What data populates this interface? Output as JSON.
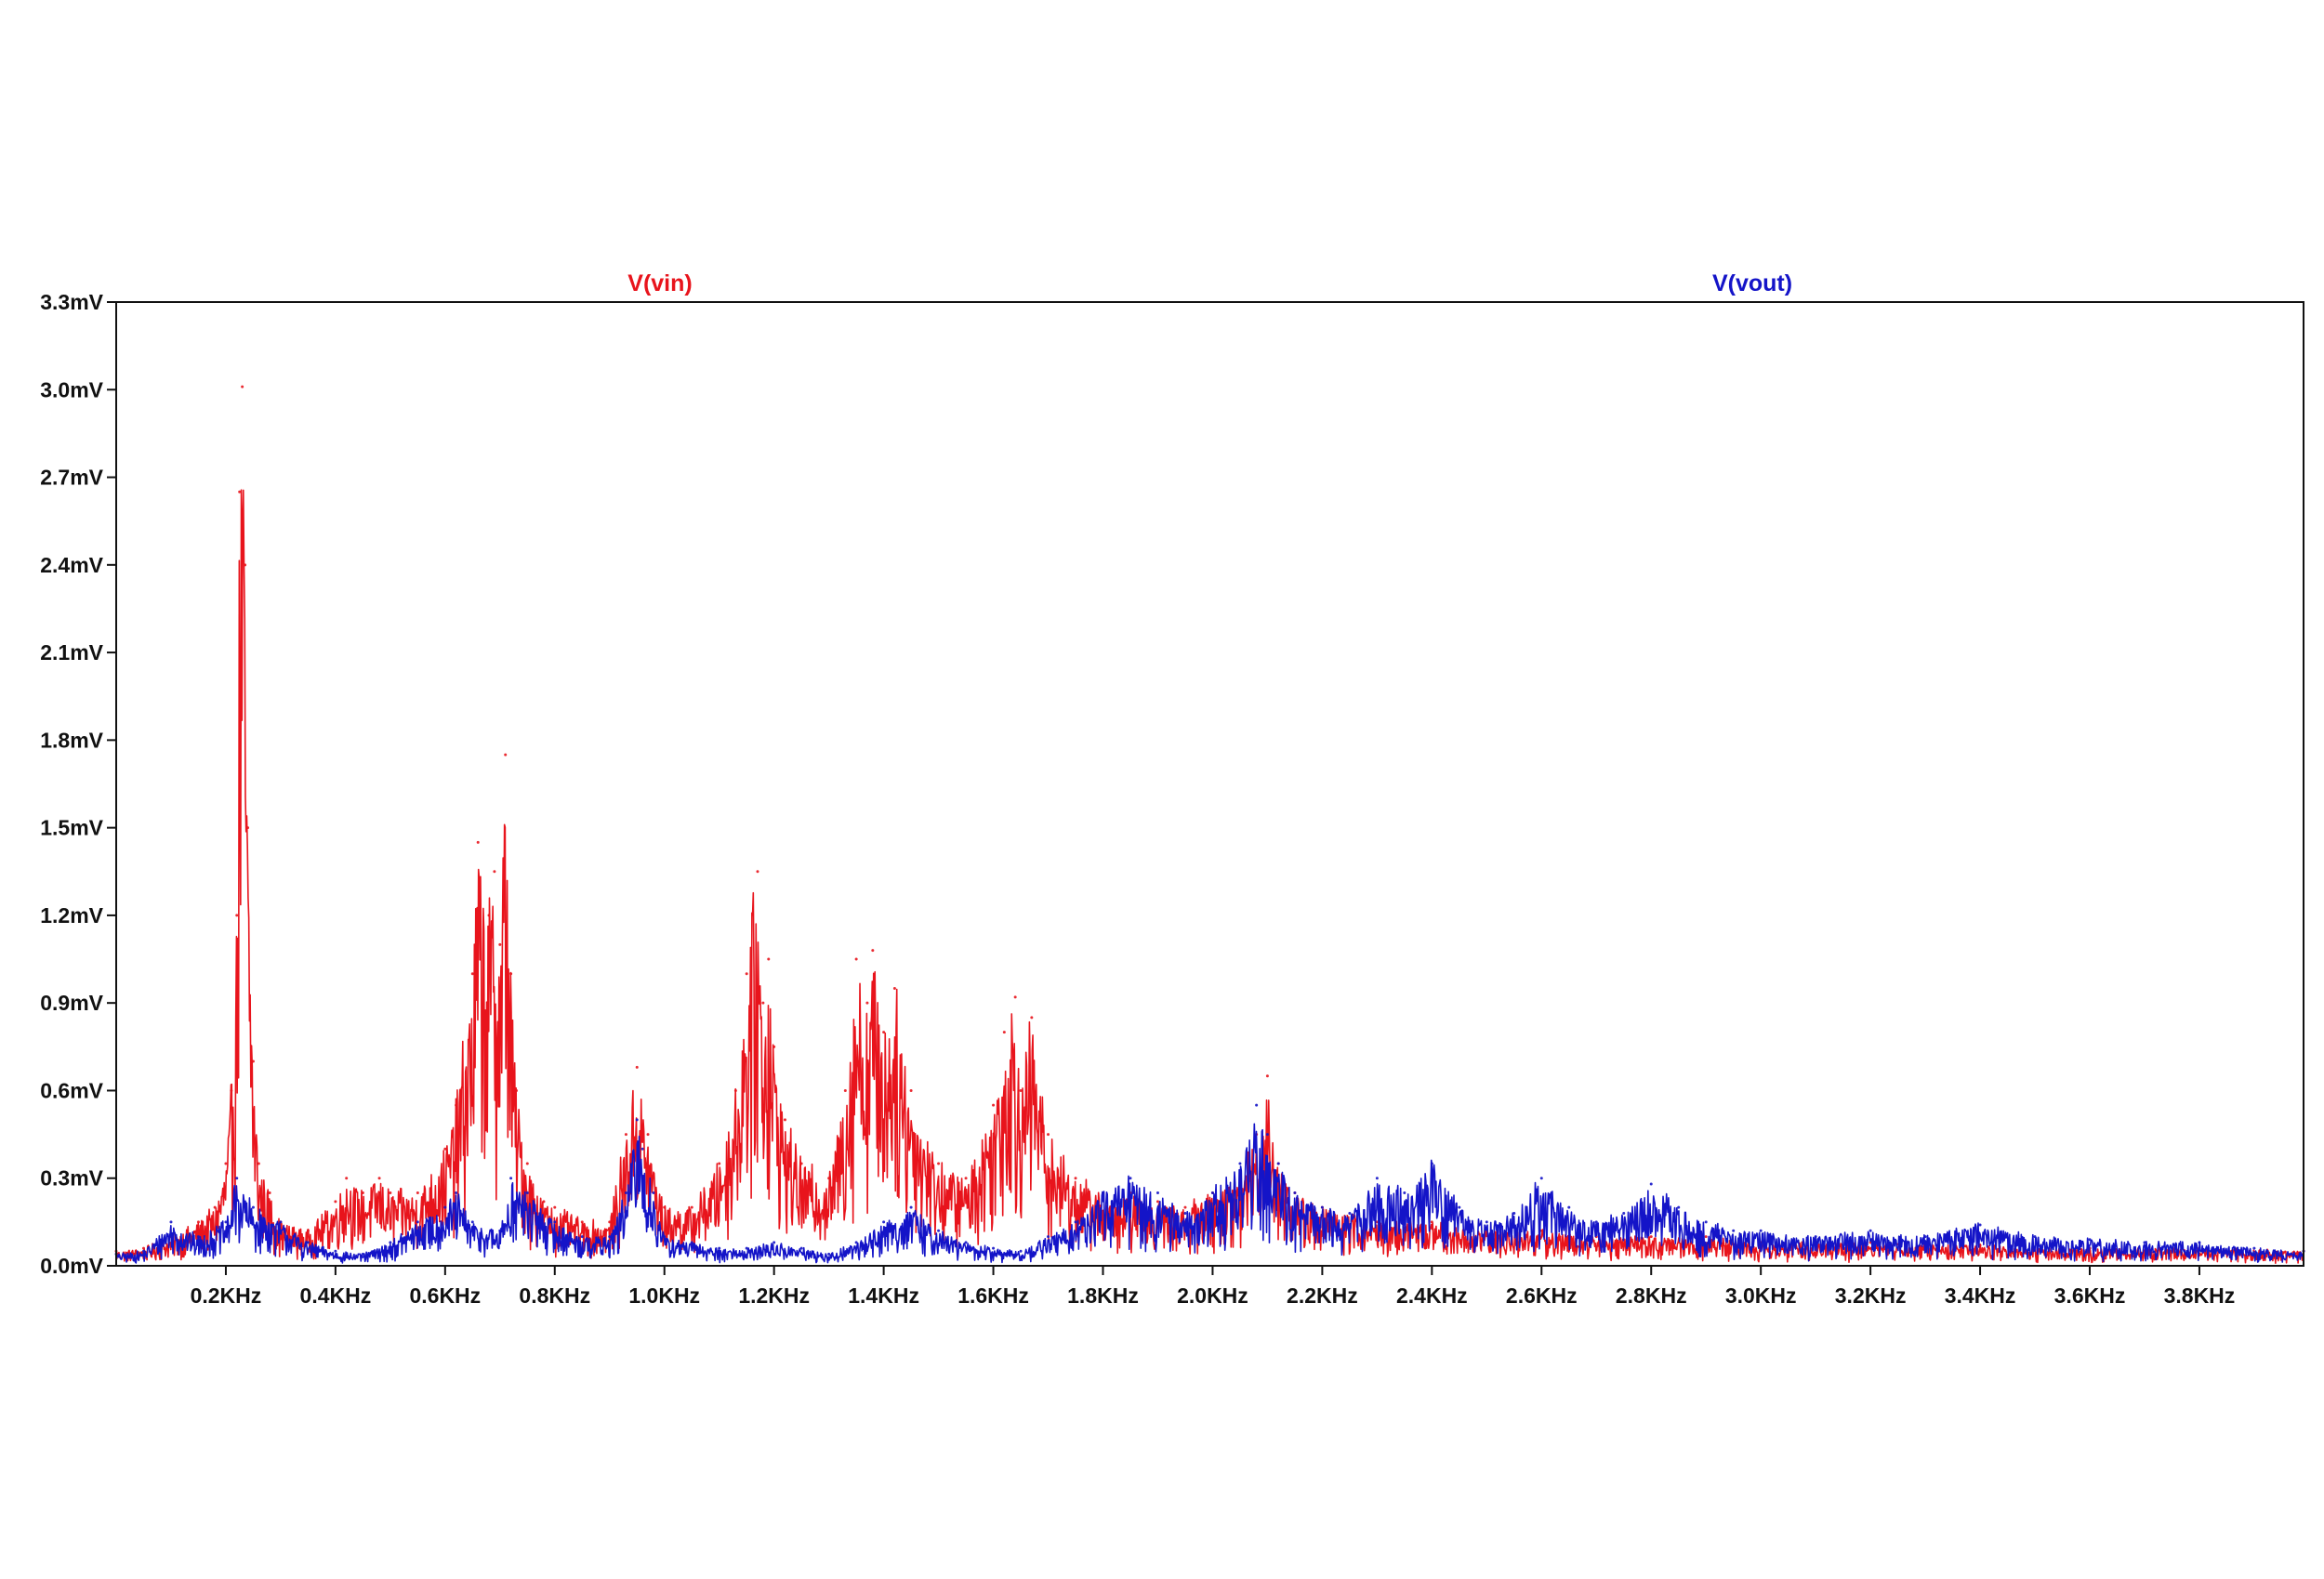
{
  "chart_data": {
    "type": "line",
    "title": "",
    "xlabel": "",
    "ylabel": "",
    "x_unit": "KHz",
    "y_unit": "mV",
    "xlim": [
      0.0,
      3.99
    ],
    "ylim": [
      0.0,
      3.3
    ],
    "grid": false,
    "x_ticks": [
      {
        "value": 0.2,
        "label": "0.2KHz"
      },
      {
        "value": 0.4,
        "label": "0.4KHz"
      },
      {
        "value": 0.6,
        "label": "0.6KHz"
      },
      {
        "value": 0.8,
        "label": "0.8KHz"
      },
      {
        "value": 1.0,
        "label": "1.0KHz"
      },
      {
        "value": 1.2,
        "label": "1.2KHz"
      },
      {
        "value": 1.4,
        "label": "1.4KHz"
      },
      {
        "value": 1.6,
        "label": "1.6KHz"
      },
      {
        "value": 1.8,
        "label": "1.8KHz"
      },
      {
        "value": 2.0,
        "label": "2.0KHz"
      },
      {
        "value": 2.2,
        "label": "2.2KHz"
      },
      {
        "value": 2.4,
        "label": "2.4KHz"
      },
      {
        "value": 2.6,
        "label": "2.6KHz"
      },
      {
        "value": 2.8,
        "label": "2.8KHz"
      },
      {
        "value": 3.0,
        "label": "3.0KHz"
      },
      {
        "value": 3.2,
        "label": "3.2KHz"
      },
      {
        "value": 3.4,
        "label": "3.4KHz"
      },
      {
        "value": 3.6,
        "label": "3.6KHz"
      },
      {
        "value": 3.8,
        "label": "3.8KHz"
      }
    ],
    "y_ticks": [
      {
        "value": 0.0,
        "label": "0.0mV"
      },
      {
        "value": 0.3,
        "label": "0.3mV"
      },
      {
        "value": 0.6,
        "label": "0.6mV"
      },
      {
        "value": 0.9,
        "label": "0.9mV"
      },
      {
        "value": 1.2,
        "label": "1.2mV"
      },
      {
        "value": 1.5,
        "label": "1.5mV"
      },
      {
        "value": 1.8,
        "label": "1.8mV"
      },
      {
        "value": 2.1,
        "label": "2.1mV"
      },
      {
        "value": 2.4,
        "label": "2.4mV"
      },
      {
        "value": 2.7,
        "label": "2.7mV"
      },
      {
        "value": 3.0,
        "label": "3.0mV"
      },
      {
        "value": 3.3,
        "label": "3.3mV"
      }
    ],
    "series": [
      {
        "name": "V(vin)",
        "color": "#e8141c",
        "x": [
          0.0,
          0.05,
          0.1,
          0.15,
          0.18,
          0.2,
          0.21,
          0.22,
          0.225,
          0.23,
          0.235,
          0.24,
          0.25,
          0.26,
          0.28,
          0.3,
          0.35,
          0.4,
          0.42,
          0.45,
          0.48,
          0.5,
          0.55,
          0.6,
          0.62,
          0.65,
          0.66,
          0.68,
          0.69,
          0.7,
          0.71,
          0.72,
          0.73,
          0.75,
          0.78,
          0.8,
          0.85,
          0.9,
          0.93,
          0.95,
          0.97,
          1.0,
          1.05,
          1.1,
          1.13,
          1.15,
          1.17,
          1.18,
          1.19,
          1.2,
          1.22,
          1.25,
          1.3,
          1.33,
          1.35,
          1.37,
          1.38,
          1.4,
          1.42,
          1.45,
          1.5,
          1.55,
          1.6,
          1.62,
          1.64,
          1.65,
          1.67,
          1.7,
          1.75,
          1.8,
          1.82,
          1.85,
          1.9,
          1.95,
          2.0,
          2.05,
          2.08,
          2.1,
          2.12,
          2.15,
          2.2,
          2.3,
          2.4,
          2.5,
          2.6,
          2.7,
          2.8,
          2.9,
          3.0,
          3.2,
          3.4,
          3.6,
          3.8,
          3.99
        ],
        "y": [
          0.05,
          0.06,
          0.1,
          0.15,
          0.2,
          0.35,
          0.6,
          1.2,
          2.65,
          3.01,
          2.4,
          1.5,
          0.7,
          0.35,
          0.25,
          0.15,
          0.12,
          0.22,
          0.3,
          0.25,
          0.3,
          0.25,
          0.25,
          0.4,
          0.55,
          1.0,
          1.45,
          1.2,
          1.35,
          1.1,
          1.75,
          1.0,
          0.6,
          0.35,
          0.22,
          0.2,
          0.15,
          0.15,
          0.45,
          0.68,
          0.45,
          0.2,
          0.2,
          0.35,
          0.6,
          1.0,
          1.35,
          0.9,
          1.05,
          0.75,
          0.5,
          0.35,
          0.3,
          0.6,
          1.05,
          0.9,
          1.08,
          0.8,
          0.95,
          0.6,
          0.35,
          0.3,
          0.55,
          0.8,
          0.92,
          0.6,
          0.85,
          0.45,
          0.3,
          0.25,
          0.2,
          0.25,
          0.22,
          0.2,
          0.25,
          0.3,
          0.45,
          0.65,
          0.35,
          0.25,
          0.2,
          0.15,
          0.15,
          0.12,
          0.12,
          0.1,
          0.1,
          0.1,
          0.08,
          0.08,
          0.07,
          0.06,
          0.06,
          0.05
        ]
      },
      {
        "name": "V(vout)",
        "color": "#1414c8",
        "x": [
          0.0,
          0.05,
          0.1,
          0.15,
          0.2,
          0.22,
          0.25,
          0.3,
          0.35,
          0.4,
          0.45,
          0.5,
          0.55,
          0.6,
          0.62,
          0.65,
          0.7,
          0.72,
          0.75,
          0.8,
          0.85,
          0.9,
          0.93,
          0.95,
          0.96,
          0.98,
          1.0,
          1.05,
          1.1,
          1.15,
          1.2,
          1.25,
          1.3,
          1.35,
          1.4,
          1.45,
          1.5,
          1.55,
          1.6,
          1.65,
          1.7,
          1.75,
          1.8,
          1.85,
          1.9,
          1.95,
          2.0,
          2.05,
          2.08,
          2.1,
          2.12,
          2.15,
          2.2,
          2.25,
          2.3,
          2.35,
          2.4,
          2.45,
          2.5,
          2.55,
          2.6,
          2.65,
          2.7,
          2.75,
          2.8,
          2.85,
          2.9,
          2.95,
          3.0,
          3.1,
          3.2,
          3.3,
          3.4,
          3.5,
          3.6,
          3.7,
          3.8,
          3.9,
          3.99
        ],
        "y": [
          0.04,
          0.05,
          0.15,
          0.1,
          0.15,
          0.3,
          0.2,
          0.15,
          0.08,
          0.05,
          0.04,
          0.08,
          0.15,
          0.2,
          0.25,
          0.15,
          0.12,
          0.3,
          0.25,
          0.15,
          0.1,
          0.1,
          0.25,
          0.5,
          0.4,
          0.25,
          0.1,
          0.08,
          0.06,
          0.06,
          0.08,
          0.06,
          0.04,
          0.08,
          0.15,
          0.2,
          0.12,
          0.08,
          0.06,
          0.05,
          0.1,
          0.15,
          0.25,
          0.3,
          0.25,
          0.18,
          0.25,
          0.35,
          0.55,
          0.45,
          0.35,
          0.25,
          0.2,
          0.18,
          0.3,
          0.25,
          0.35,
          0.2,
          0.15,
          0.18,
          0.3,
          0.2,
          0.15,
          0.18,
          0.28,
          0.2,
          0.15,
          0.12,
          0.12,
          0.1,
          0.12,
          0.1,
          0.14,
          0.1,
          0.09,
          0.08,
          0.08,
          0.06,
          0.05
        ]
      }
    ]
  }
}
